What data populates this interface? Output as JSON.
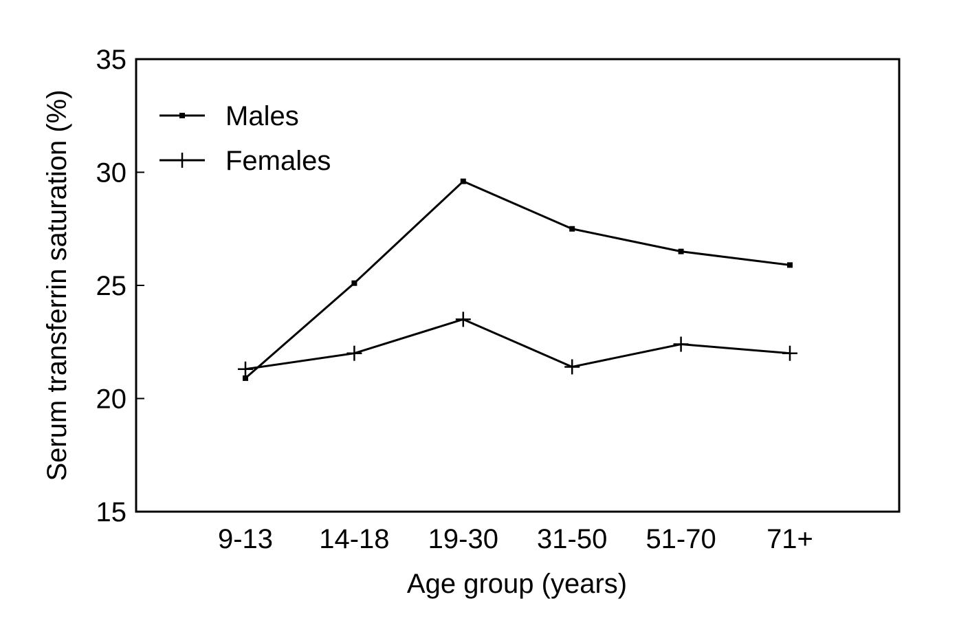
{
  "chart_data": {
    "type": "line",
    "title": "",
    "xlabel": "Age group (years)",
    "ylabel": "Serum transferrin saturation (%)",
    "categories": [
      "9-13",
      "14-18",
      "19-30",
      "31-50",
      "51-70",
      "71+"
    ],
    "ylim": [
      15,
      35
    ],
    "yticks": [
      "15",
      "20",
      "25",
      "30",
      "35"
    ],
    "grid": false,
    "legend": "top-left",
    "series": [
      {
        "name": "Males",
        "marker": "square",
        "values": [
          20.9,
          25.1,
          29.6,
          27.5,
          26.5,
          25.9
        ]
      },
      {
        "name": "Females",
        "marker": "plus",
        "values": [
          21.3,
          22.0,
          23.5,
          21.4,
          22.4,
          22.0
        ]
      }
    ],
    "colors": {
      "line": "#000000",
      "background": "#ffffff"
    }
  }
}
